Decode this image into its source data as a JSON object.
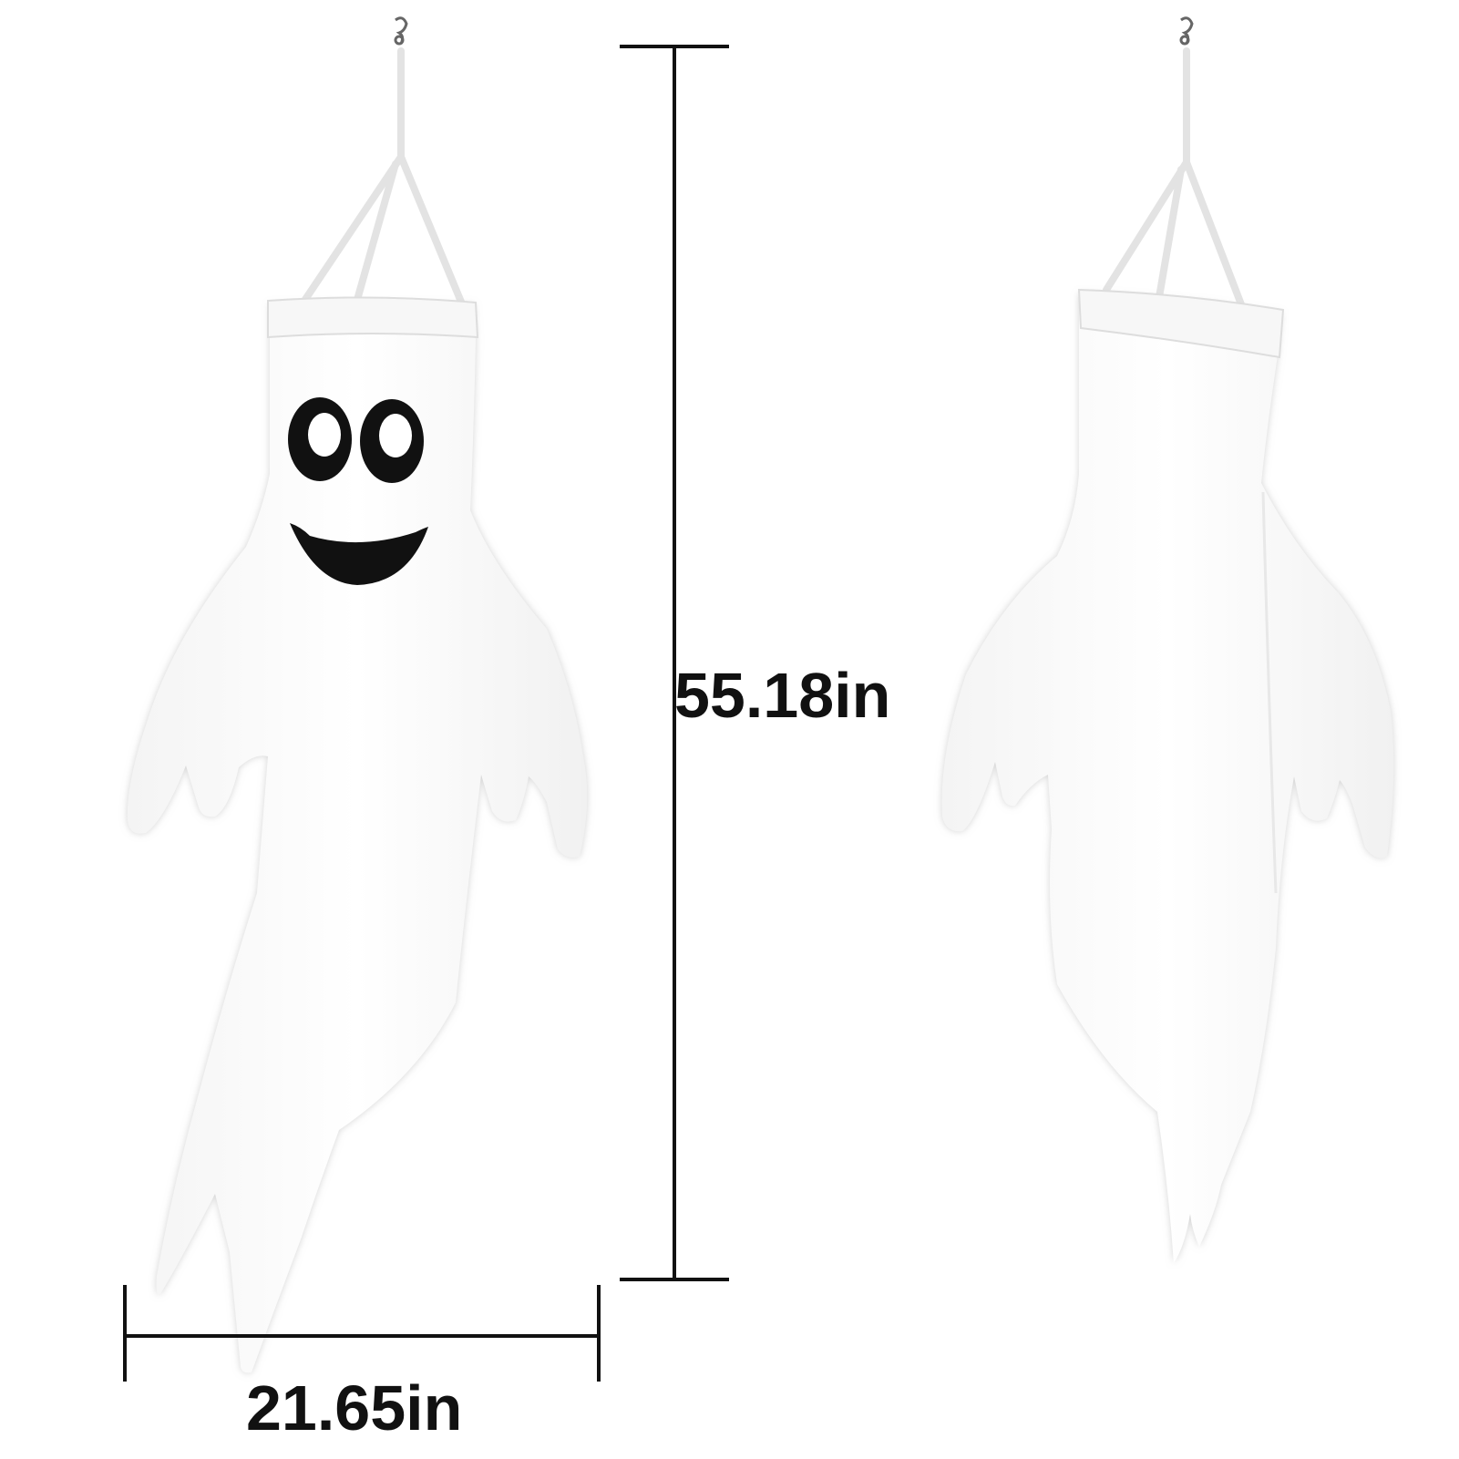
{
  "dimensions": {
    "height_label": "55.18in",
    "width_label": "21.65in"
  },
  "colors": {
    "background": "#ffffff",
    "ghost_fill": "#ffffff",
    "ghost_shade": "#e6e6e6",
    "face": "#111111",
    "measure_line": "#111111"
  },
  "icons": {
    "front": "ghost-windsock-front-icon",
    "back": "ghost-windsock-back-icon",
    "hook": "swivel-hook-icon"
  }
}
